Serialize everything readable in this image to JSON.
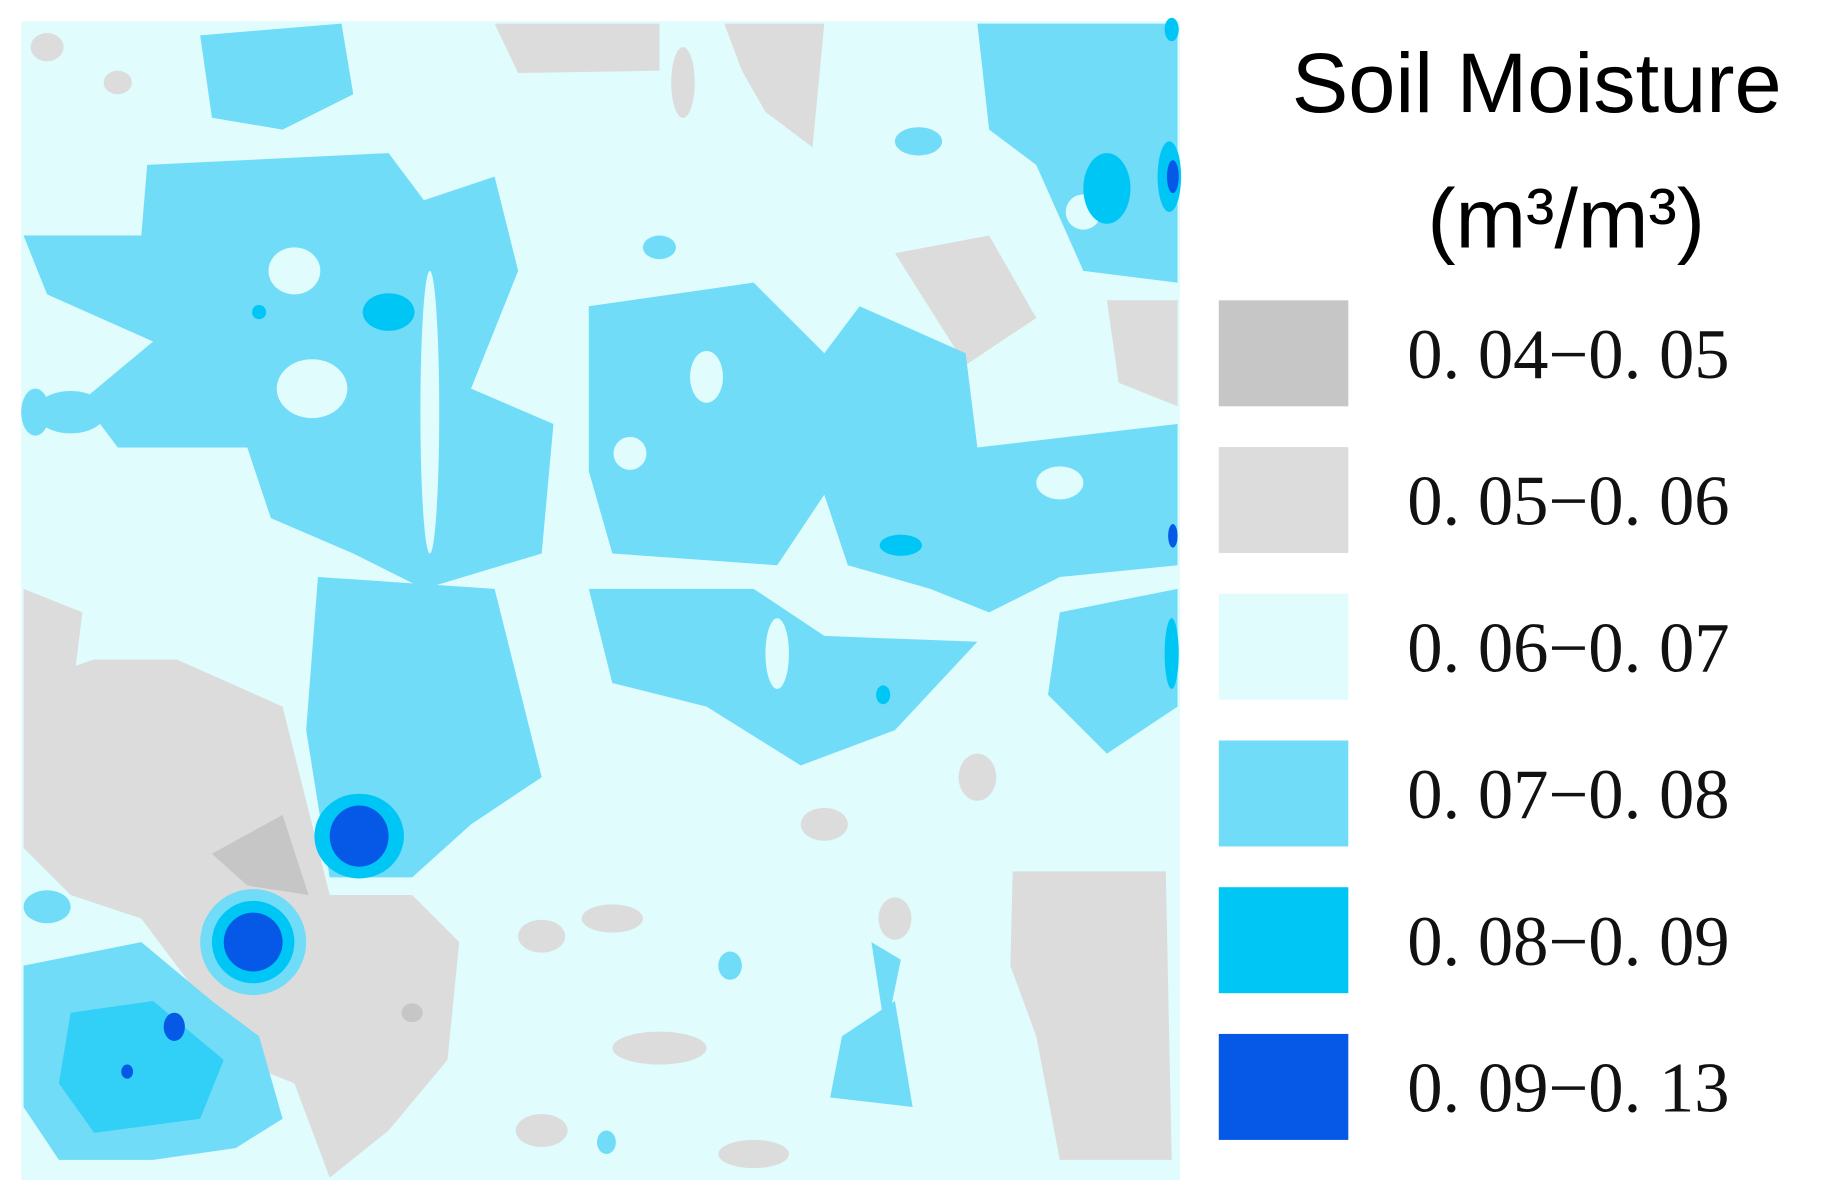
{
  "legend": {
    "title": "Soil Moisture",
    "unit": "(m³/m³)",
    "items": [
      {
        "label": "0. 04−0. 05",
        "color": "#c6c6c6"
      },
      {
        "label": "0. 05−0. 06",
        "color": "#dcdcdc"
      },
      {
        "label": "0. 06−0. 07",
        "color": "#e0fcfd"
      },
      {
        "label": "0. 07−0. 08",
        "color": "#70dcf8"
      },
      {
        "label": "0. 08−0. 09",
        "color": "#00c6f6"
      },
      {
        "label": "0. 09−0. 13",
        "color": "#0659e6"
      }
    ]
  }
}
